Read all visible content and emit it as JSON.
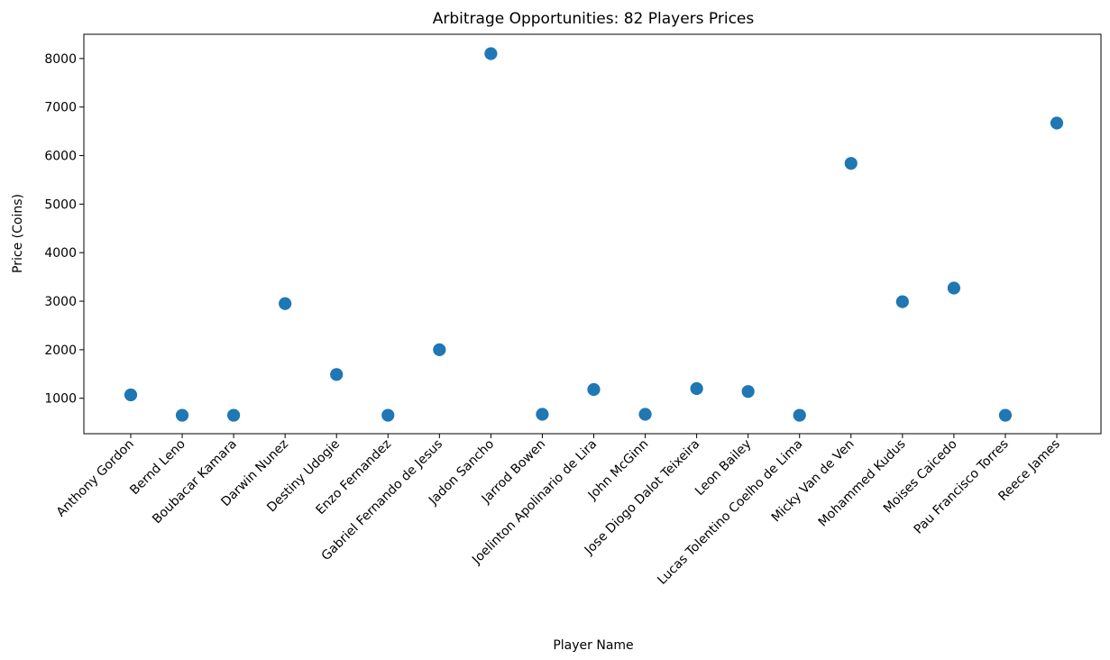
{
  "chart_data": {
    "type": "scatter",
    "title": "Arbitrage Opportunities: 82 Players Prices",
    "xlabel": "Player Name",
    "ylabel": "Price (Coins)",
    "categories": [
      "Anthony Gordon",
      "Bernd Leno",
      "Boubacar Kamara",
      "Darwin Nunez",
      "Destiny Udogie",
      "Enzo Fernandez",
      "Gabriel Fernando de Jesus",
      "Jadon Sancho",
      "Jarrod Bowen",
      "Joelinton Apolinario de Lira",
      "John McGinn",
      "Jose Diogo Dalot Teixeira",
      "Leon Bailey",
      "Lucas Tolentino Coelho de Lima",
      "Micky Van de Ven",
      "Mohammed Kudus",
      "Moises Caicedo",
      "Pau Francisco Torres",
      "Reece James"
    ],
    "values": [
      1070,
      650,
      650,
      2950,
      1490,
      650,
      2000,
      8100,
      670,
      1180,
      670,
      1200,
      1140,
      650,
      5840,
      2990,
      3270,
      650,
      6670
    ],
    "yticks": [
      1000,
      2000,
      3000,
      4000,
      5000,
      6000,
      7000,
      8000
    ],
    "ylim": [
      270,
      8500
    ],
    "grid": false,
    "legend": "none",
    "marker_color": "#1f77b4"
  }
}
